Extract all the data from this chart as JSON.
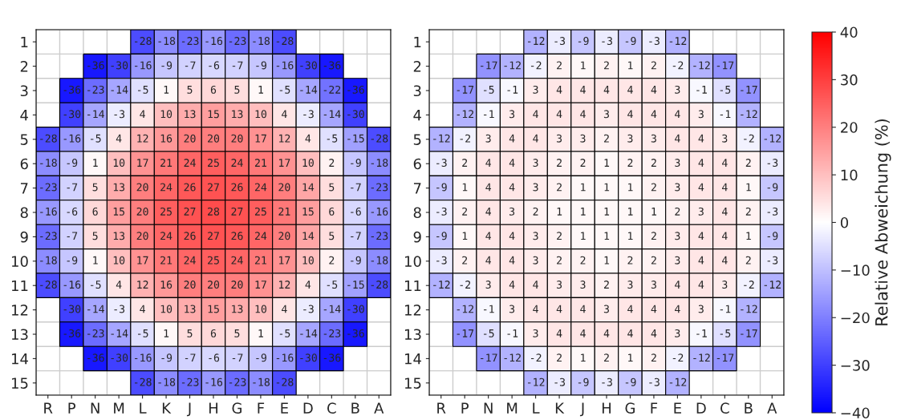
{
  "chart_data": [
    {
      "type": "heatmap",
      "categories": [
        "R",
        "P",
        "N",
        "M",
        "L",
        "K",
        "J",
        "H",
        "G",
        "F",
        "E",
        "D",
        "C",
        "B",
        "A"
      ],
      "y_categories": [
        "1",
        "2",
        "3",
        "4",
        "5",
        "6",
        "7",
        "8",
        "9",
        "10",
        "11",
        "12",
        "13",
        "14",
        "15"
      ],
      "grid": true,
      "data_labels": true,
      "cells": [
        [
          null,
          null,
          null,
          null,
          -28,
          -18,
          -23,
          -16,
          -23,
          -18,
          -28,
          null,
          null,
          null,
          null
        ],
        [
          null,
          null,
          -36,
          -30,
          -16,
          -9,
          -7,
          -6,
          -7,
          -9,
          -16,
          -30,
          -36,
          null,
          null
        ],
        [
          null,
          -36,
          -23,
          -14,
          -5,
          1,
          5,
          6,
          5,
          1,
          -5,
          -14,
          -22,
          -36,
          null
        ],
        [
          null,
          -30,
          -14,
          -3,
          4,
          10,
          13,
          15,
          13,
          10,
          4,
          -3,
          -14,
          -30,
          null
        ],
        [
          -28,
          -16,
          -5,
          4,
          12,
          16,
          20,
          20,
          20,
          17,
          12,
          4,
          -5,
          -15,
          -28
        ],
        [
          -18,
          -9,
          1,
          10,
          17,
          21,
          24,
          25,
          24,
          21,
          17,
          10,
          2,
          -9,
          -18
        ],
        [
          -23,
          -7,
          5,
          13,
          20,
          24,
          26,
          27,
          26,
          24,
          20,
          14,
          5,
          -7,
          -23
        ],
        [
          -16,
          -6,
          6,
          15,
          20,
          25,
          27,
          28,
          27,
          25,
          21,
          15,
          6,
          -6,
          -16
        ],
        [
          -23,
          -7,
          5,
          13,
          20,
          24,
          26,
          27,
          26,
          24,
          20,
          14,
          5,
          -7,
          -23
        ],
        [
          -18,
          -9,
          1,
          10,
          17,
          21,
          24,
          25,
          24,
          21,
          17,
          10,
          2,
          -9,
          -18
        ],
        [
          -28,
          -16,
          -5,
          4,
          12,
          16,
          20,
          20,
          20,
          17,
          12,
          4,
          -5,
          -15,
          -28
        ],
        [
          null,
          -30,
          -14,
          -3,
          4,
          10,
          13,
          15,
          13,
          10,
          4,
          -3,
          -14,
          -30,
          null
        ],
        [
          null,
          -36,
          -23,
          -14,
          -5,
          1,
          5,
          6,
          5,
          1,
          -5,
          -14,
          -23,
          -36,
          null
        ],
        [
          null,
          null,
          -36,
          -30,
          -16,
          -9,
          -7,
          -6,
          -7,
          -9,
          -16,
          -30,
          -36,
          null,
          null
        ],
        [
          null,
          null,
          null,
          null,
          -28,
          -18,
          -23,
          -16,
          -23,
          -18,
          -28,
          null,
          null,
          null,
          null
        ]
      ]
    },
    {
      "type": "heatmap",
      "categories": [
        "R",
        "P",
        "N",
        "M",
        "L",
        "K",
        "J",
        "H",
        "G",
        "F",
        "E",
        "D",
        "C",
        "B",
        "A"
      ],
      "y_categories": [
        "1",
        "2",
        "3",
        "4",
        "5",
        "6",
        "7",
        "8",
        "9",
        "10",
        "11",
        "12",
        "13",
        "14",
        "15"
      ],
      "clim": [
        -40,
        40
      ],
      "grid": true,
      "data_labels": true,
      "clabel": "Relative Abweichung (%)",
      "cticks": [
        {
          "value": -40,
          "label": "−40"
        },
        {
          "value": -30,
          "label": "−30"
        },
        {
          "value": -20,
          "label": "−20"
        },
        {
          "value": -10,
          "label": "−10"
        },
        0,
        10,
        20,
        30,
        40
      ],
      "cells": [
        [
          null,
          null,
          null,
          null,
          -12,
          -3,
          -9,
          -3,
          -9,
          -3,
          -12,
          null,
          null,
          null,
          null
        ],
        [
          null,
          null,
          -17,
          -12,
          -2,
          2,
          1,
          2,
          1,
          2,
          -2,
          -12,
          -17,
          null,
          null
        ],
        [
          null,
          -17,
          -5,
          -1,
          3,
          4,
          4,
          4,
          4,
          4,
          3,
          -1,
          -5,
          -17,
          null
        ],
        [
          null,
          -12,
          -1,
          3,
          4,
          4,
          4,
          3,
          4,
          4,
          4,
          3,
          -1,
          -12,
          null
        ],
        [
          -12,
          -2,
          3,
          4,
          4,
          3,
          3,
          2,
          3,
          3,
          4,
          4,
          3,
          -2,
          -12
        ],
        [
          -3,
          2,
          4,
          4,
          3,
          2,
          2,
          1,
          2,
          2,
          3,
          4,
          4,
          2,
          -3
        ],
        [
          -9,
          1,
          4,
          4,
          3,
          2,
          1,
          1,
          1,
          2,
          3,
          4,
          4,
          1,
          -9
        ],
        [
          -3,
          2,
          4,
          3,
          2,
          1,
          1,
          1,
          1,
          1,
          2,
          3,
          4,
          2,
          -3
        ],
        [
          -9,
          1,
          4,
          4,
          3,
          2,
          1,
          1,
          1,
          2,
          3,
          4,
          4,
          1,
          -9
        ],
        [
          -3,
          2,
          4,
          4,
          3,
          2,
          2,
          1,
          2,
          2,
          3,
          4,
          4,
          2,
          -3
        ],
        [
          -12,
          -2,
          3,
          4,
          4,
          3,
          3,
          2,
          3,
          3,
          4,
          4,
          3,
          -2,
          -12
        ],
        [
          null,
          -12,
          -1,
          3,
          4,
          4,
          4,
          3,
          4,
          4,
          4,
          3,
          -1,
          -12,
          null
        ],
        [
          null,
          -17,
          -5,
          -1,
          3,
          4,
          4,
          4,
          4,
          4,
          3,
          -1,
          -5,
          -17,
          null
        ],
        [
          null,
          null,
          -17,
          -12,
          -2,
          2,
          1,
          2,
          1,
          2,
          -2,
          -12,
          -17,
          null,
          null
        ],
        [
          null,
          null,
          null,
          null,
          -12,
          -3,
          -9,
          -3,
          -9,
          -3,
          -12,
          null,
          null,
          null,
          null
        ]
      ]
    }
  ]
}
